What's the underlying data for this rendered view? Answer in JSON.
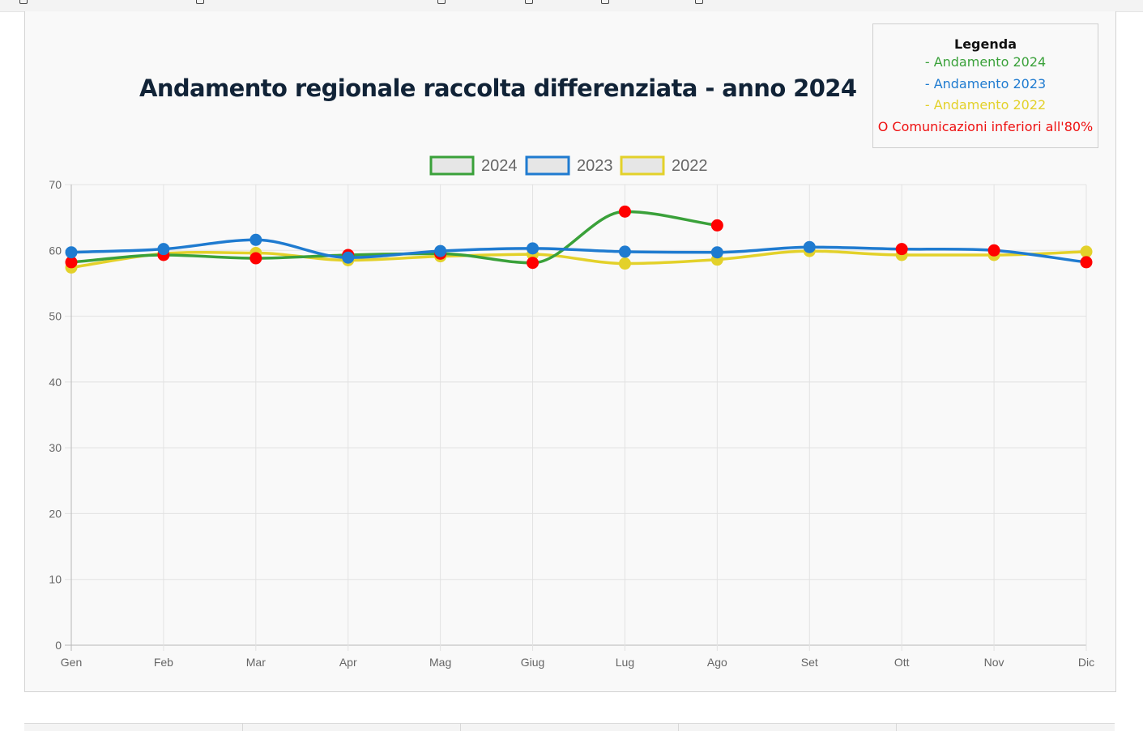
{
  "panel": {
    "legend_box": {
      "title": "Legenda",
      "lines": [
        {
          "text": "- Andamento 2024",
          "color": "#3aa13a"
        },
        {
          "text": "- Andamento 2023",
          "color": "#1f7bd0"
        },
        {
          "text": "- Andamento 2022",
          "color": "#e3d12a"
        },
        {
          "text": "O Comunicazioni inferiori all'80%",
          "color": "#ee1111"
        }
      ]
    }
  },
  "chart_data": {
    "type": "line",
    "title": "Andamento regionale raccolta differenziata - anno 2024",
    "categories": [
      "Gen",
      "Feb",
      "Mar",
      "Apr",
      "Mag",
      "Giug",
      "Lug",
      "Ago",
      "Set",
      "Ott",
      "Nov",
      "Dic"
    ],
    "ylim": [
      0,
      70
    ],
    "yticks": [
      0,
      10,
      20,
      30,
      40,
      50,
      60,
      70
    ],
    "grid": true,
    "legend_position": "top",
    "series": [
      {
        "name": "2024",
        "color": "#3aa13a",
        "values": [
          58.2,
          59.3,
          58.8,
          59.3,
          59.5,
          58.1,
          65.9,
          63.8,
          null,
          null,
          null,
          null
        ],
        "red_markers": [
          true,
          true,
          true,
          true,
          true,
          true,
          true,
          true,
          false,
          false,
          false,
          false
        ]
      },
      {
        "name": "2023",
        "color": "#1f7bd0",
        "values": [
          59.7,
          60.2,
          61.6,
          58.9,
          59.9,
          60.3,
          59.8,
          59.7,
          60.5,
          60.2,
          60.0,
          58.2
        ],
        "red_markers": [
          false,
          false,
          false,
          false,
          false,
          false,
          false,
          false,
          false,
          true,
          true,
          true
        ]
      },
      {
        "name": "2022",
        "color": "#e3d12a",
        "values": [
          57.4,
          59.5,
          59.6,
          58.5,
          59.1,
          59.4,
          58.0,
          58.6,
          59.9,
          59.3,
          59.3,
          59.8
        ],
        "red_markers": [
          false,
          false,
          false,
          false,
          false,
          false,
          false,
          false,
          false,
          false,
          false,
          false
        ]
      }
    ],
    "marker_red_color": "#ff0000"
  }
}
